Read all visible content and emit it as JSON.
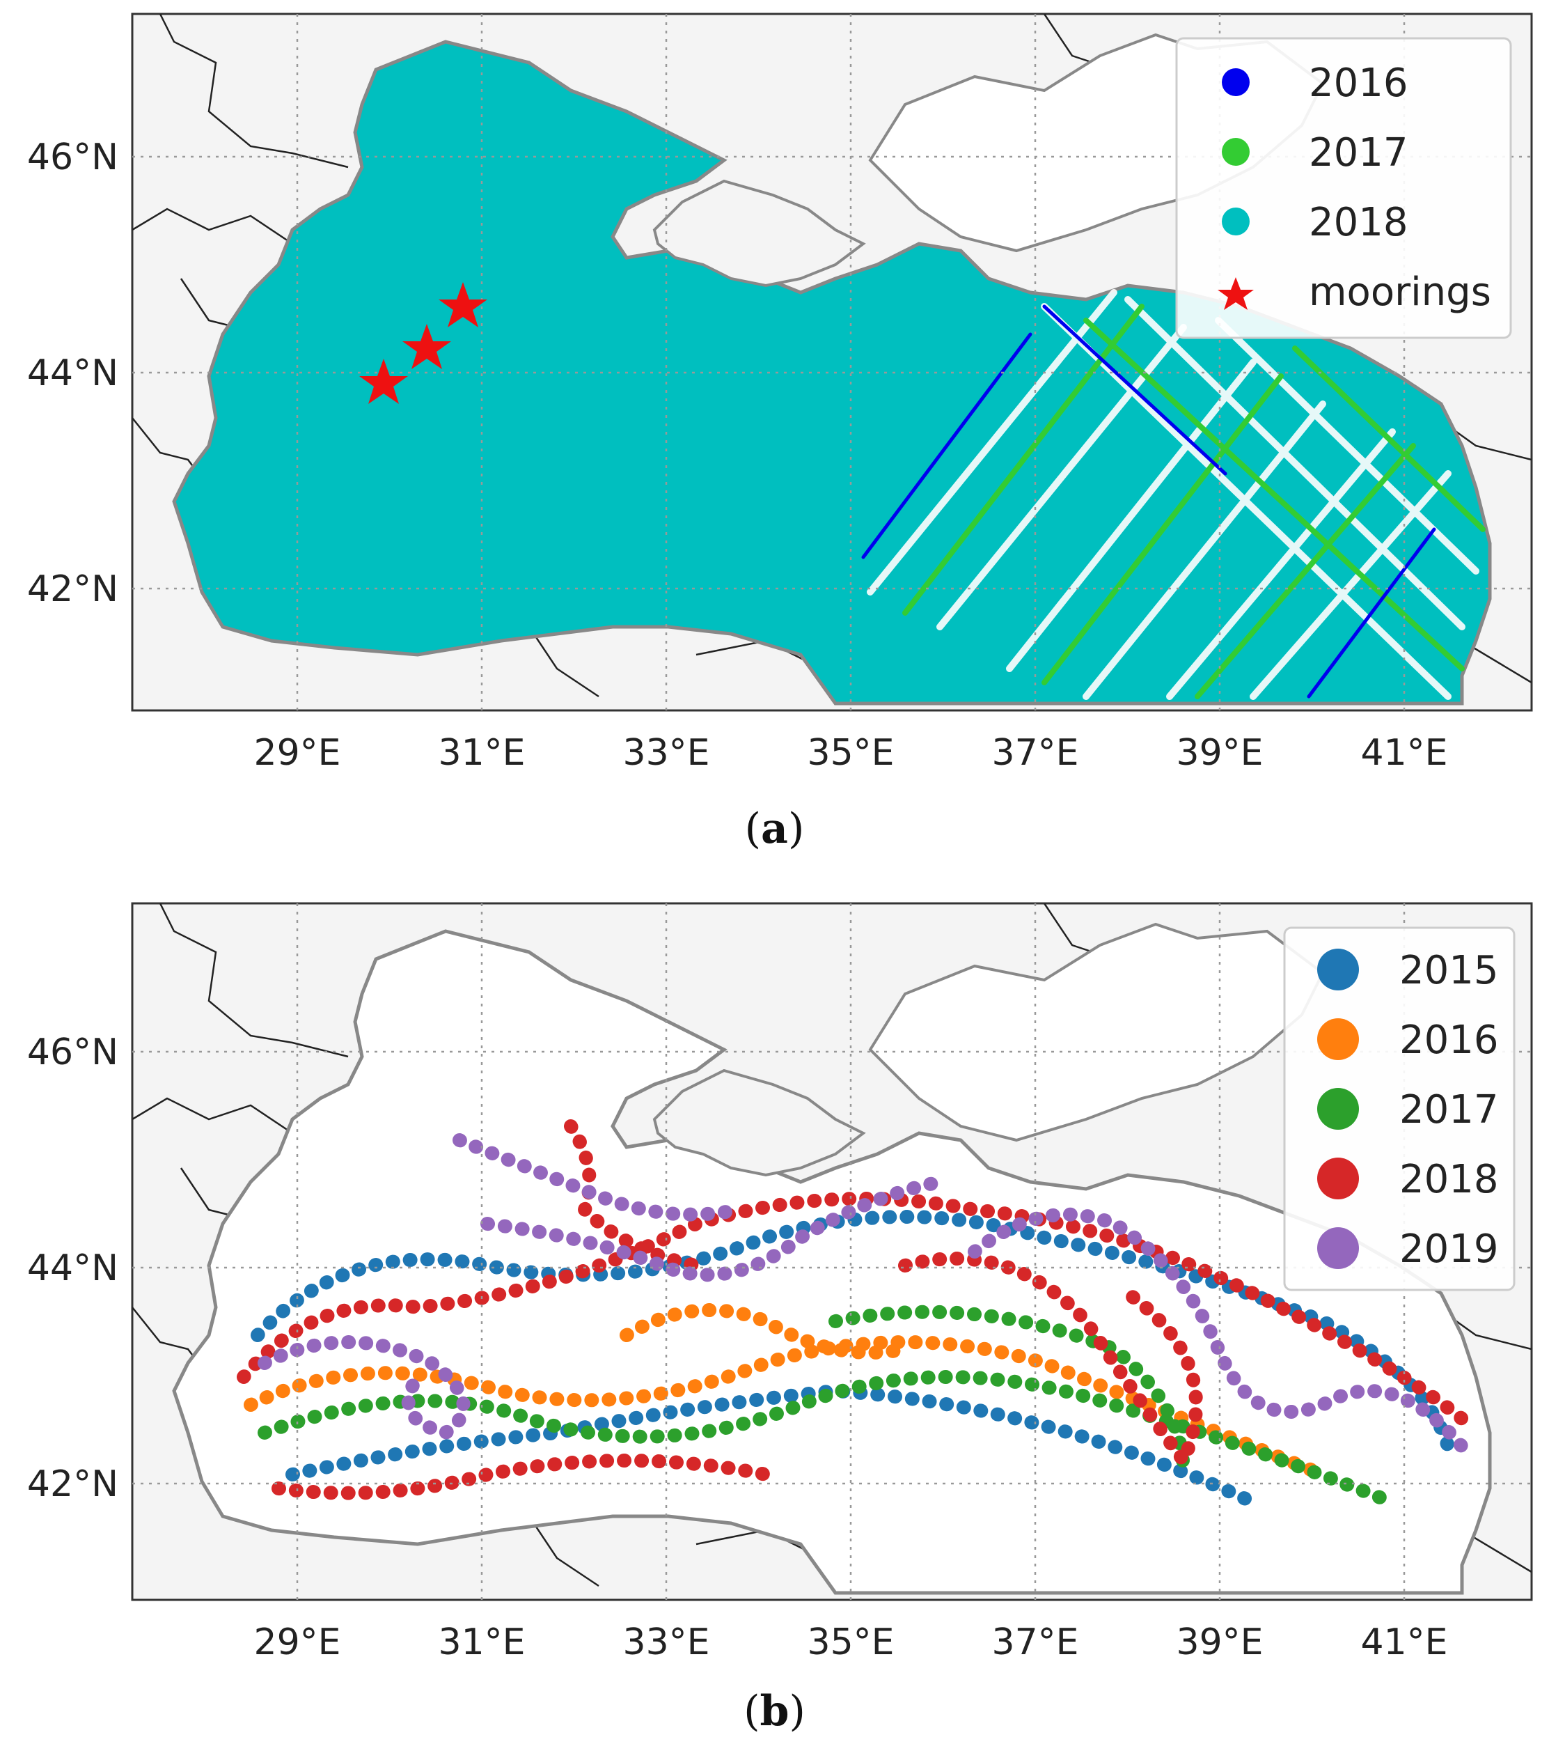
{
  "colors": {
    "frame": "#333333",
    "land": "#f4f4f4",
    "sea": "#ffffff",
    "coast": "#888888",
    "rivers": "#222222",
    "grid": "#999999"
  },
  "panels": [
    {
      "caption_letter": "a",
      "x_ticks": [
        "29°E",
        "31°E",
        "33°E",
        "35°E",
        "37°E",
        "39°E",
        "41°E"
      ],
      "y_ticks": [
        "46°N",
        "44°N",
        "42°N"
      ],
      "legend": [
        {
          "label": "2016",
          "color": "#0000ee",
          "marker": "dot"
        },
        {
          "label": "2017",
          "color": "#33cc33",
          "marker": "dot"
        },
        {
          "label": "2018",
          "color": "#00bfbf",
          "marker": "dot"
        },
        {
          "label": "moorings",
          "color": "#ee1111",
          "marker": "star"
        }
      ]
    },
    {
      "caption_letter": "b",
      "x_ticks": [
        "29°E",
        "31°E",
        "33°E",
        "35°E",
        "37°E",
        "39°E",
        "41°E"
      ],
      "y_ticks": [
        "46°N",
        "44°N",
        "42°N"
      ],
      "legend": [
        {
          "label": "2015",
          "color": "#1f77b4",
          "marker": "dot"
        },
        {
          "label": "2016",
          "color": "#ff7f0e",
          "marker": "dot"
        },
        {
          "label": "2017",
          "color": "#2ca02c",
          "marker": "dot"
        },
        {
          "label": "2018",
          "color": "#d62728",
          "marker": "dot"
        },
        {
          "label": "2019",
          "color": "#9467bd",
          "marker": "dot"
        }
      ]
    }
  ]
}
